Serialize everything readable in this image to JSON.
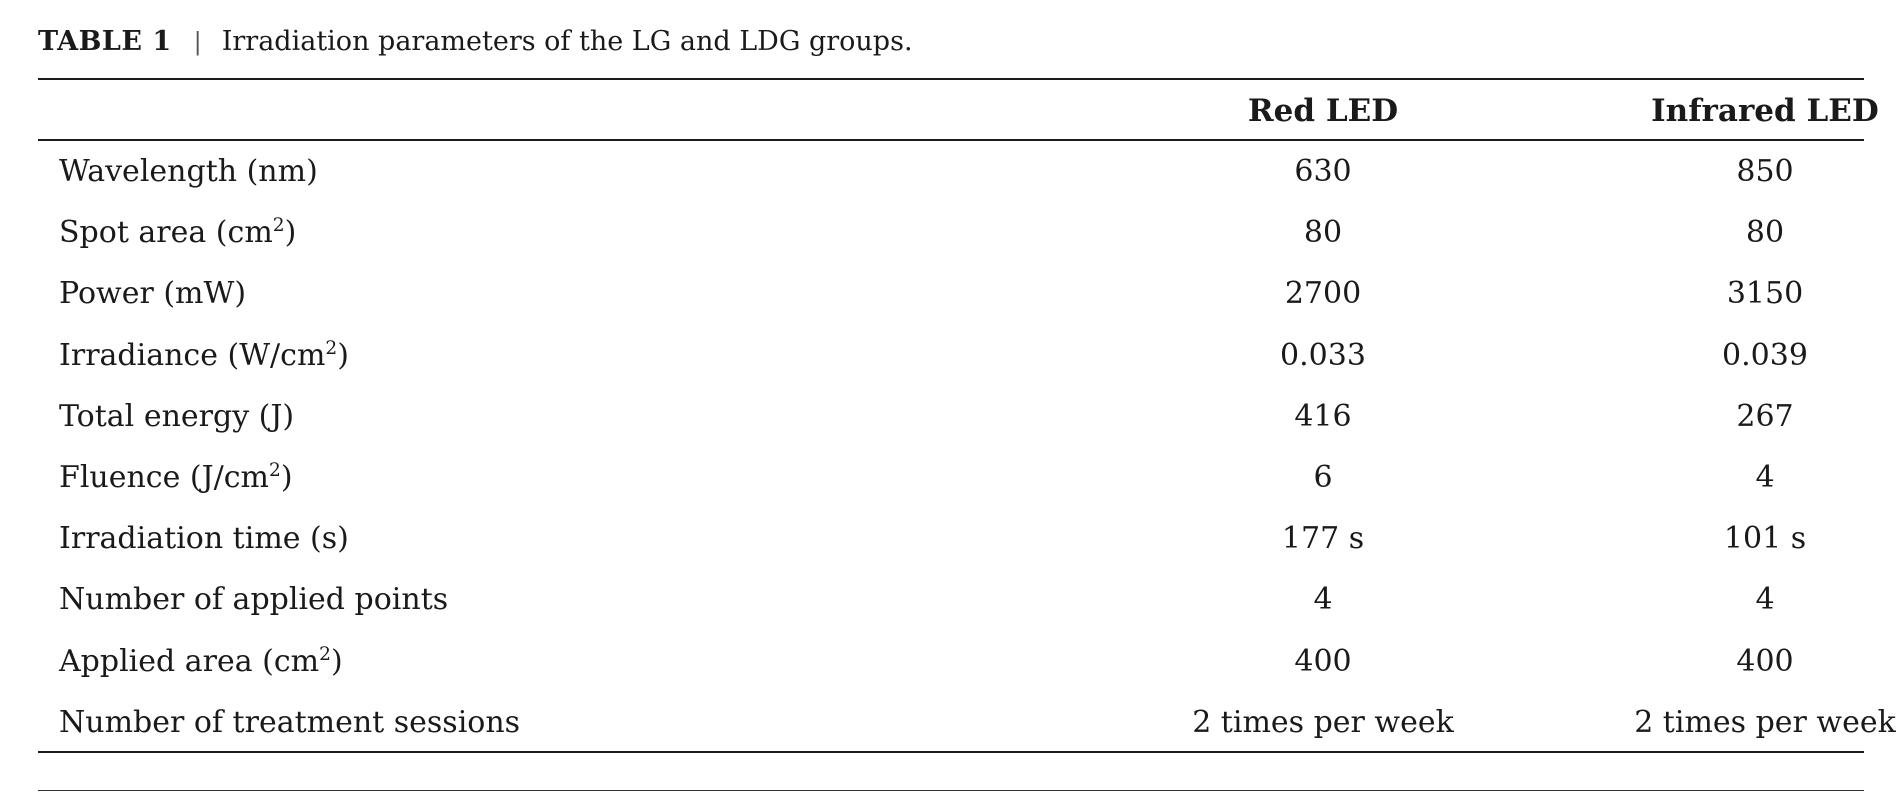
{
  "caption": {
    "label": "TABLE 1",
    "separator": "|",
    "text": "Irradiation parameters of the LG and LDG groups."
  },
  "columns": {
    "red": "Red LED",
    "infrared": "Infrared LED"
  },
  "rows": [
    {
      "param": "Wavelength (nm)",
      "sup": "",
      "param_suffix": "",
      "red": "630",
      "infrared": "850"
    },
    {
      "param": "Spot area (cm",
      "sup": "2",
      "param_suffix": ")",
      "red": "80",
      "infrared": "80"
    },
    {
      "param": "Power (mW)",
      "sup": "",
      "param_suffix": "",
      "red": "2700",
      "infrared": "3150"
    },
    {
      "param": "Irradiance (W/cm",
      "sup": "2",
      "param_suffix": ")",
      "red": "0.033",
      "infrared": "0.039"
    },
    {
      "param": "Total energy (J)",
      "sup": "",
      "param_suffix": "",
      "red": "416",
      "infrared": "267"
    },
    {
      "param": "Fluence (J/cm",
      "sup": "2",
      "param_suffix": ")",
      "red": "6",
      "infrared": "4"
    },
    {
      "param": "Irradiation time (s)",
      "sup": "",
      "param_suffix": "",
      "red": "177 s",
      "infrared": "101 s"
    },
    {
      "param": "Number of applied points",
      "sup": "",
      "param_suffix": "",
      "red": "4",
      "infrared": "4"
    },
    {
      "param": "Applied area (cm",
      "sup": "2",
      "param_suffix": ")",
      "red": "400",
      "infrared": "400"
    },
    {
      "param": "Number of treatment sessions",
      "sup": "",
      "param_suffix": "",
      "red": "2 times per week",
      "infrared": "2 times per week"
    }
  ]
}
